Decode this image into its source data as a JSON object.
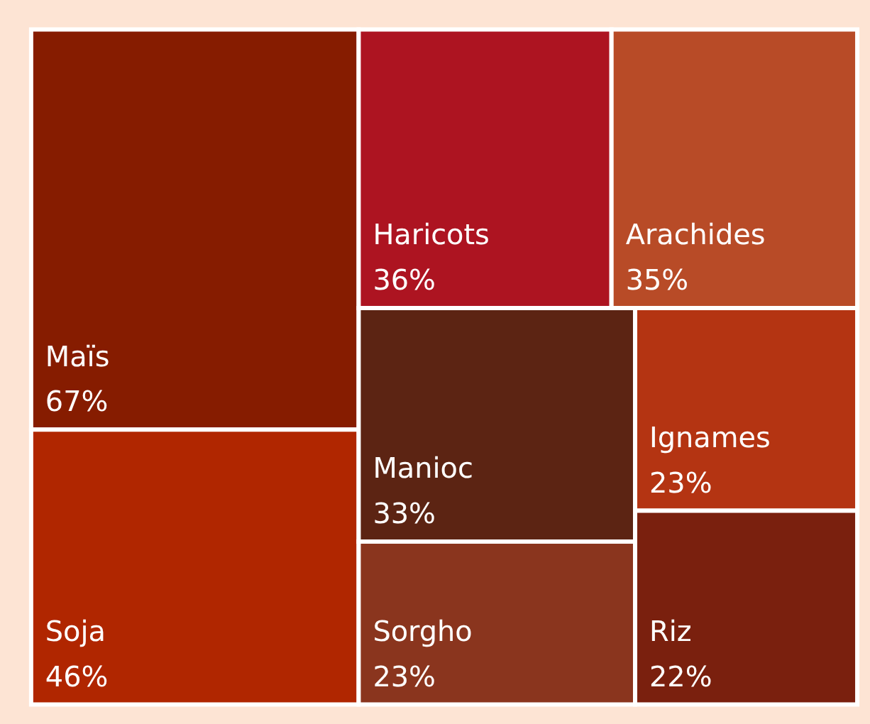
{
  "chart_data": {
    "type": "other",
    "categories": [
      "Maïs",
      "Soja",
      "Haricots",
      "Arachides",
      "Manioc",
      "Sorgho",
      "Ignames",
      "Riz"
    ],
    "values": [
      67,
      46,
      36,
      35,
      33,
      23,
      23,
      22
    ],
    "value_labels": [
      "67%",
      "46%",
      "36%",
      "35%",
      "33%",
      "23%",
      "23%",
      "22%"
    ],
    "colors": [
      "#861c00",
      "#b02600",
      "#ad1421",
      "#b84b27",
      "#5c2413",
      "#8a351e",
      "#b43412",
      "#7a200e"
    ]
  }
}
